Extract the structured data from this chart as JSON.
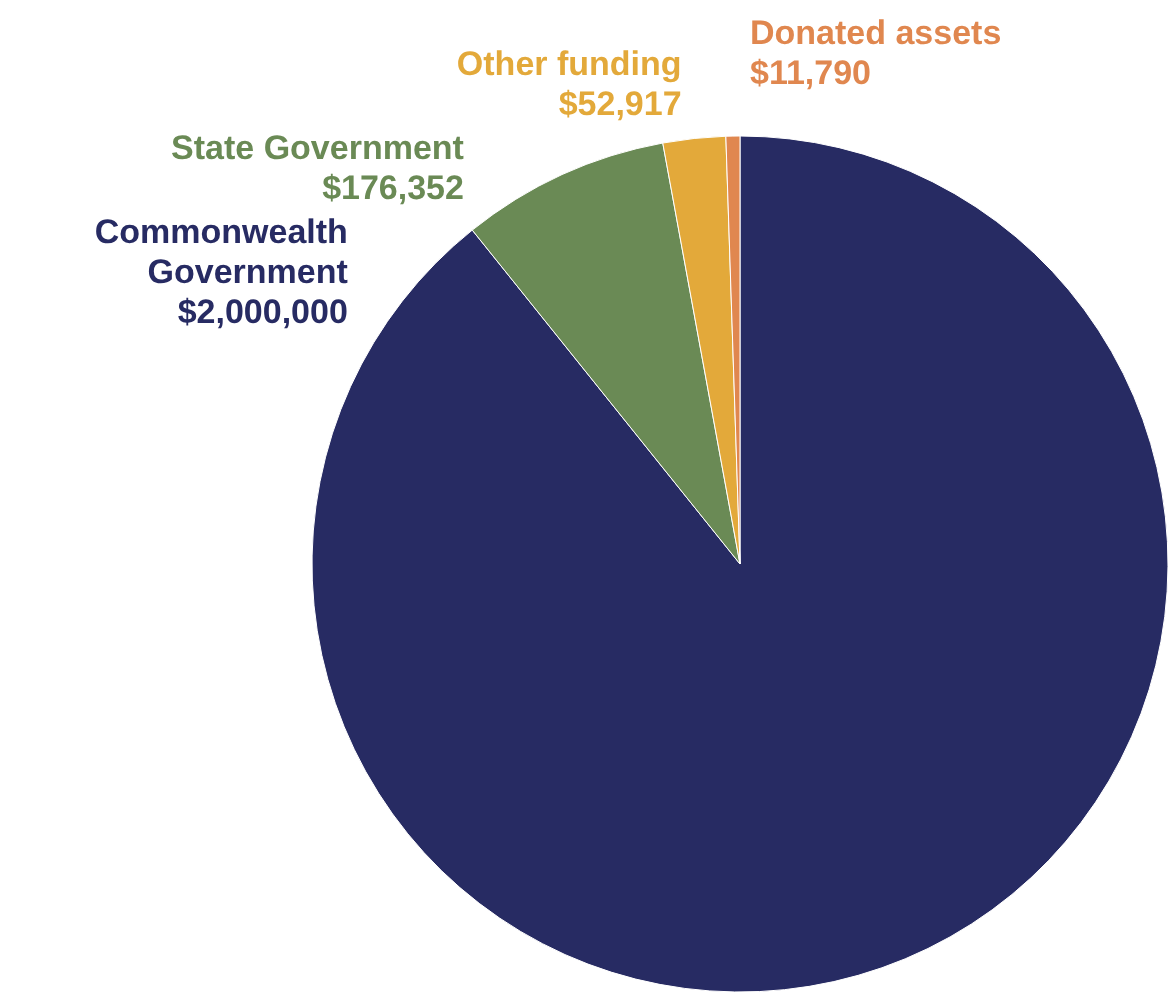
{
  "chart_data": {
    "type": "pie",
    "categories": [
      "Commonwealth Government",
      "State Government",
      "Other funding",
      "Donated assets"
    ],
    "values": [
      2000000,
      176352,
      52917,
      11790
    ],
    "colors": [
      "#272b63",
      "#6a8a55",
      "#e3a93a",
      "#e0874f"
    ],
    "value_labels": [
      "$2,000,000",
      "$176,352",
      "$52,917",
      "$11,790"
    ]
  }
}
